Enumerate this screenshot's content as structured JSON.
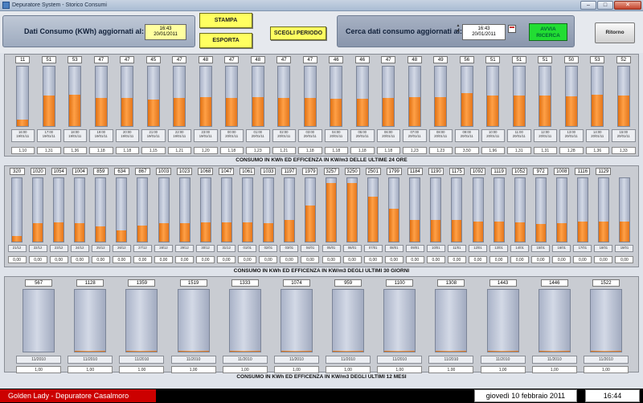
{
  "window": {
    "title": "Depuratore System - Storico Consumi"
  },
  "header": {
    "label_consumo": "Dati Consumo (KWh) aggiornati al:",
    "updated_time": "16:43",
    "updated_date": "20/01/2011",
    "stampa_label": "STAMPA",
    "esporta_label": "ESPORTA",
    "scegli_label": "SCEGLI PERIODO",
    "label_cerca": "Cerca dati consumo aggiornati al:",
    "search_time": "16:43",
    "search_date": "20/01/2011",
    "avvia_line1": "AVVIA",
    "avvia_line2": "RICERCA",
    "ritorno_label": "Ritorno",
    "colors": {
      "yellow_button": "#ffff60",
      "green_button": "#22dd33"
    }
  },
  "sections": [
    {
      "id": "hours",
      "title": "CONSUMO IN KWh ED EFFICENZA IN KW/m3 DELLE ULTIME 24 ORE",
      "max": 100,
      "items": [
        {
          "value": "11",
          "level": 11,
          "time": "16:00",
          "date": "19/01/11",
          "eff": "1,10"
        },
        {
          "value": "51",
          "level": 51,
          "time": "17:00",
          "date": "19/01/11",
          "eff": "1,31"
        },
        {
          "value": "53",
          "level": 53,
          "time": "18:00",
          "date": "19/01/11",
          "eff": "1,36"
        },
        {
          "value": "47",
          "level": 47,
          "time": "19:00",
          "date": "19/01/11",
          "eff": "1,18"
        },
        {
          "value": "47",
          "level": 47,
          "time": "20:00",
          "date": "19/01/11",
          "eff": "1,18"
        },
        {
          "value": "45",
          "level": 45,
          "time": "21:00",
          "date": "19/01/11",
          "eff": "1,15"
        },
        {
          "value": "47",
          "level": 47,
          "time": "22:00",
          "date": "19/01/11",
          "eff": "1,21"
        },
        {
          "value": "48",
          "level": 48,
          "time": "23:00",
          "date": "19/01/11",
          "eff": "1,20"
        },
        {
          "value": "47",
          "level": 47,
          "time": "00:00",
          "date": "20/01/11",
          "eff": "1,18"
        },
        {
          "value": "48",
          "level": 48,
          "time": "01:00",
          "date": "20/01/11",
          "eff": "1,23"
        },
        {
          "value": "47",
          "level": 47,
          "time": "02:00",
          "date": "20/01/11",
          "eff": "1,21"
        },
        {
          "value": "47",
          "level": 47,
          "time": "03:00",
          "date": "20/01/11",
          "eff": "1,18"
        },
        {
          "value": "46",
          "level": 46,
          "time": "04:00",
          "date": "20/01/11",
          "eff": "1,18"
        },
        {
          "value": "46",
          "level": 46,
          "time": "05:00",
          "date": "20/01/11",
          "eff": "1,18"
        },
        {
          "value": "47",
          "level": 47,
          "time": "06:00",
          "date": "20/01/11",
          "eff": "1,18"
        },
        {
          "value": "48",
          "level": 48,
          "time": "07:00",
          "date": "20/01/11",
          "eff": "1,23"
        },
        {
          "value": "49",
          "level": 49,
          "time": "08:00",
          "date": "20/01/11",
          "eff": "1,23"
        },
        {
          "value": "56",
          "level": 56,
          "time": "09:00",
          "date": "20/01/11",
          "eff": "3,50"
        },
        {
          "value": "51",
          "level": 51,
          "time": "10:00",
          "date": "20/01/11",
          "eff": "1,96"
        },
        {
          "value": "51",
          "level": 51,
          "time": "11:00",
          "date": "20/01/11",
          "eff": "1,31"
        },
        {
          "value": "51",
          "level": 51,
          "time": "12:00",
          "date": "20/01/11",
          "eff": "1,31"
        },
        {
          "value": "50",
          "level": 50,
          "time": "13:00",
          "date": "20/01/11",
          "eff": "1,28"
        },
        {
          "value": "53",
          "level": 53,
          "time": "14:00",
          "date": "20/01/11",
          "eff": "1,36"
        },
        {
          "value": "52",
          "level": 52,
          "time": "15:00",
          "date": "20/01/11",
          "eff": "1,33"
        }
      ]
    },
    {
      "id": "days",
      "title": "CONSUMO IN KWh ED EFFICENZA IN KW/m3 DEGLI ULTIMI 30 GIORNI",
      "max": 3500,
      "items": [
        {
          "value": "320",
          "level": 320,
          "date": "21/12",
          "eff": "0,00"
        },
        {
          "value": "1020",
          "level": 1020,
          "date": "22/12",
          "eff": "0,00"
        },
        {
          "value": "1054",
          "level": 1054,
          "date": "23/12",
          "eff": "0,00"
        },
        {
          "value": "1004",
          "level": 1004,
          "date": "24/12",
          "eff": "0,00"
        },
        {
          "value": "859",
          "level": 859,
          "date": "25/12",
          "eff": "0,00"
        },
        {
          "value": "634",
          "level": 634,
          "date": "26/12",
          "eff": "0,00"
        },
        {
          "value": "867",
          "level": 867,
          "date": "27/12",
          "eff": "0,00"
        },
        {
          "value": "1003",
          "level": 1003,
          "date": "28/12",
          "eff": "0,00"
        },
        {
          "value": "1023",
          "level": 1023,
          "date": "29/12",
          "eff": "0,00"
        },
        {
          "value": "1068",
          "level": 1068,
          "date": "30/12",
          "eff": "0,00"
        },
        {
          "value": "1047",
          "level": 1047,
          "date": "31/12",
          "eff": "0,00"
        },
        {
          "value": "1061",
          "level": 1061,
          "date": "01/01",
          "eff": "0,00"
        },
        {
          "value": "1033",
          "level": 1033,
          "date": "02/01",
          "eff": "0,00"
        },
        {
          "value": "1197",
          "level": 1197,
          "date": "03/01",
          "eff": "0,00"
        },
        {
          "value": "1979",
          "level": 1979,
          "date": "04/01",
          "eff": "0,00"
        },
        {
          "value": "3257",
          "level": 3257,
          "date": "05/01",
          "eff": "0,00"
        },
        {
          "value": "3250",
          "level": 3250,
          "date": "06/01",
          "eff": "0,00"
        },
        {
          "value": "2501",
          "level": 2501,
          "date": "07/01",
          "eff": "0,00"
        },
        {
          "value": "1799",
          "level": 1799,
          "date": "08/01",
          "eff": "0,00"
        },
        {
          "value": "1184",
          "level": 1184,
          "date": "09/01",
          "eff": "0,00"
        },
        {
          "value": "1190",
          "level": 1190,
          "date": "10/01",
          "eff": "0,00"
        },
        {
          "value": "1175",
          "level": 1175,
          "date": "11/01",
          "eff": "0,00"
        },
        {
          "value": "1092",
          "level": 1092,
          "date": "12/01",
          "eff": "0,00"
        },
        {
          "value": "1119",
          "level": 1119,
          "date": "13/01",
          "eff": "0,00"
        },
        {
          "value": "1052",
          "level": 1052,
          "date": "14/01",
          "eff": "0,00"
        },
        {
          "value": "972",
          "level": 972,
          "date": "15/01",
          "eff": "0,00"
        },
        {
          "value": "1008",
          "level": 1008,
          "date": "16/01",
          "eff": "0,00"
        },
        {
          "value": "1116",
          "level": 1116,
          "date": "17/01",
          "eff": "0,00"
        },
        {
          "value": "1129",
          "level": 1129,
          "date": "18/01",
          "eff": "0,00"
        },
        {
          "value": "",
          "level": 1129,
          "date": "19/01",
          "eff": "0,00"
        }
      ]
    },
    {
      "id": "months",
      "title": "CONSUMO IN KWh ED EFFICENZA IN KW/m3 DEGLI ULTIMI 12 MESI",
      "max": 100000,
      "items": [
        {
          "value": "567",
          "level": 567,
          "date": "11/2010",
          "eff": "1,00"
        },
        {
          "value": "1128",
          "level": 1128,
          "date": "11/2010",
          "eff": "1,00"
        },
        {
          "value": "1359",
          "level": 1359,
          "date": "11/2010",
          "eff": "1,00"
        },
        {
          "value": "1519",
          "level": 1519,
          "date": "11/2010",
          "eff": "1,00"
        },
        {
          "value": "1333",
          "level": 1333,
          "date": "11/2010",
          "eff": "1,00"
        },
        {
          "value": "1074",
          "level": 1074,
          "date": "11/2010",
          "eff": "1,00"
        },
        {
          "value": "959",
          "level": 959,
          "date": "11/2010",
          "eff": "1,00"
        },
        {
          "value": "1100",
          "level": 1100,
          "date": "11/2010",
          "eff": "1,00"
        },
        {
          "value": "1308",
          "level": 1308,
          "date": "11/2010",
          "eff": "1,00"
        },
        {
          "value": "1443",
          "level": 1443,
          "date": "11/2010",
          "eff": "1,00"
        },
        {
          "value": "1446",
          "level": 1446,
          "date": "11/2010",
          "eff": "1,00"
        },
        {
          "value": "1522",
          "level": 1522,
          "date": "11/2010",
          "eff": "1,00"
        }
      ]
    }
  ],
  "status": {
    "plant": "Golden Lady - Depuratore Casalmoro",
    "date": "giovedì 10 febbraio 2011",
    "time": "16:44",
    "colors": {
      "plant_bg": "#cc0000"
    }
  }
}
